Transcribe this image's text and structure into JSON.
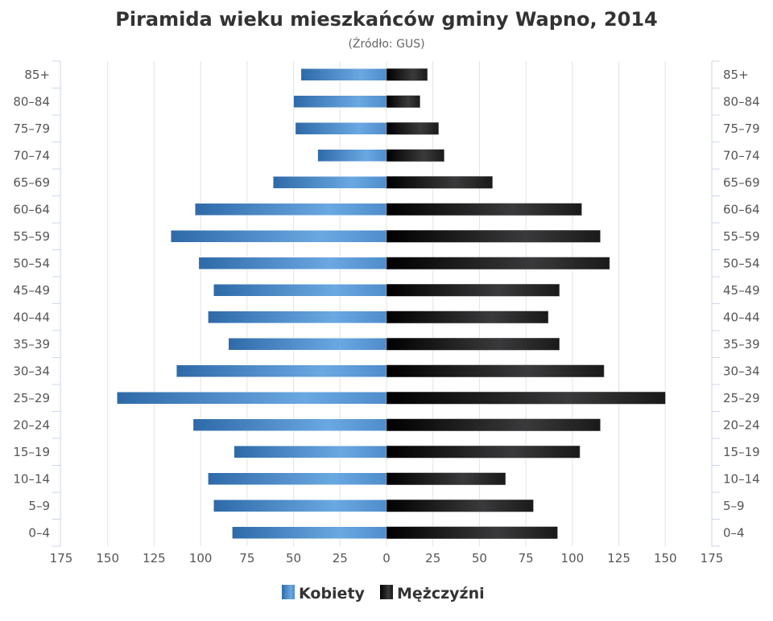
{
  "chart_data": {
    "type": "bar",
    "orientation": "horizontal-pyramid",
    "title": "Piramida wieku mieszkańców gminy Wapno, 2014",
    "subtitle": "(Źródło: GUS)",
    "categories": [
      "85+",
      "80–84",
      "75–79",
      "70–74",
      "65–69",
      "60–64",
      "55–59",
      "50–54",
      "45–49",
      "40–44",
      "35–39",
      "30–34",
      "25–29",
      "20–24",
      "15–19",
      "10–14",
      "5–9",
      "0–4"
    ],
    "series": [
      {
        "name": "Kobiety",
        "side": "left",
        "color": "#4a88c7",
        "values": [
          46,
          50,
          49,
          37,
          61,
          103,
          116,
          101,
          93,
          96,
          85,
          113,
          145,
          104,
          82,
          96,
          93,
          83
        ]
      },
      {
        "name": "Mężczyźni",
        "side": "right",
        "color": "#1a1a1a",
        "values": [
          22,
          18,
          28,
          31,
          57,
          105,
          115,
          120,
          93,
          87,
          93,
          117,
          150,
          115,
          104,
          64,
          79,
          92
        ]
      }
    ],
    "xaxis_ticks": [
      "175",
      "150",
      "125",
      "100",
      "75",
      "50",
      "25",
      "0",
      "25",
      "50",
      "75",
      "100",
      "125",
      "150",
      "175"
    ],
    "xlim": [
      -175,
      175
    ],
    "grid": true,
    "legend": "bottom-center"
  }
}
